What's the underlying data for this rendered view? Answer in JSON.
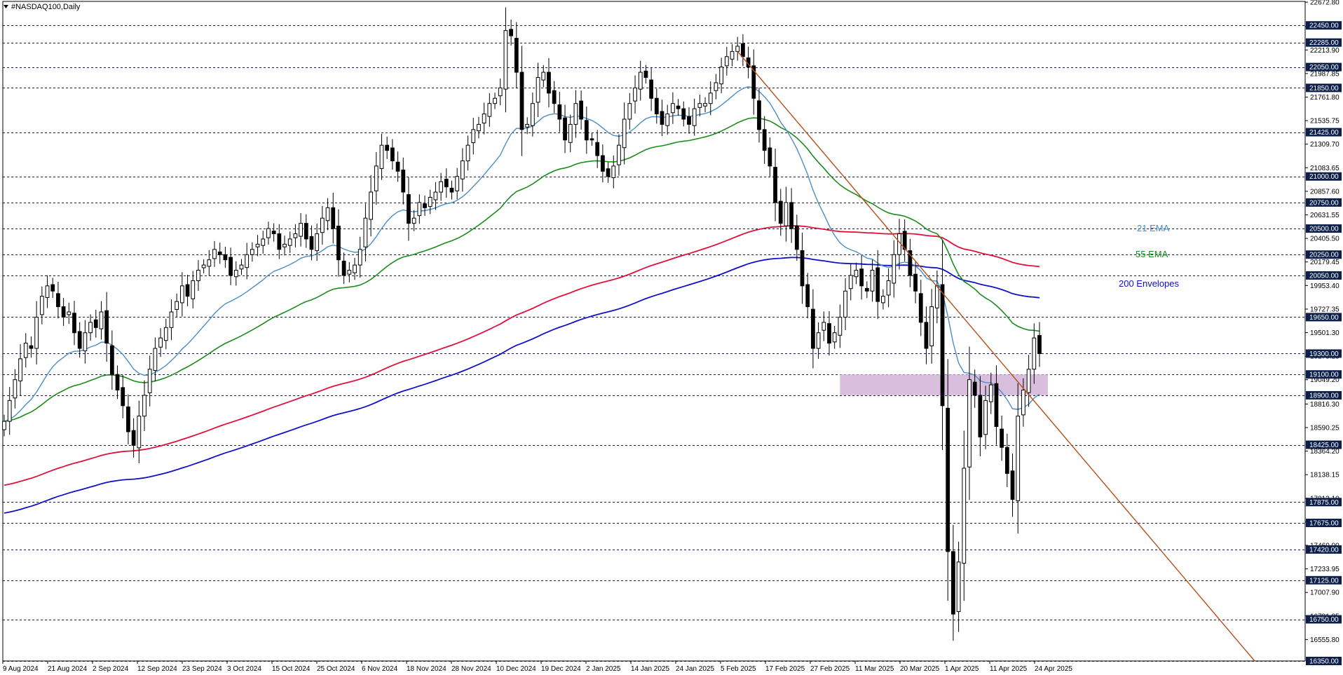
{
  "window": {
    "title": "#NASDAQ100,Daily"
  },
  "colors": {
    "bull_fill": "#ffffff",
    "bear_fill": "#000000",
    "candle_stroke": "#000000",
    "ema21": "#4a8ec6",
    "ema55": "#1a8c1a",
    "env_upper": "#e0103a",
    "env_lower": "#1010c8",
    "trendline": "#b5501a",
    "zone": "#d4b3d8",
    "level_line": "#1a1a4a",
    "level_label_bg": "#0b1f4a"
  },
  "icons": {
    "menu": "triangle-down-icon"
  },
  "chart_data": {
    "type": "candlestick",
    "title": "#NASDAQ100,Daily",
    "ylim": [
      16350,
      22680
    ],
    "y_ticks": [
      "22672.80",
      "22439.05",
      "22213.90",
      "21987.85",
      "21761.80",
      "21535.75",
      "21309.70",
      "21083.65",
      "20857.60",
      "20631.55",
      "20405.50",
      "20179.45",
      "19953.40",
      "19727.35",
      "19501.30",
      "19275.25",
      "19049.20",
      "18816.30",
      "18590.25",
      "18364.20",
      "18138.15",
      "17912.10",
      "17686.05",
      "17460.00",
      "17233.95",
      "17007.90",
      "16781.85",
      "16555.80"
    ],
    "horizontal_levels": [
      22450,
      22285,
      22050,
      21850,
      21425,
      21000,
      20750,
      20500,
      20250,
      20050,
      19650,
      19300,
      19100,
      18900,
      18425,
      17875,
      17675,
      17420,
      17125,
      16750,
      16350
    ],
    "level_labels": [
      "22450.00",
      "22285.00",
      "22050.00",
      "21850.00",
      "21425.00",
      "21000.00",
      "20750.00",
      "20500.00",
      "20250.00",
      "20050.00",
      "19650.00",
      "19300.00",
      "19100.00",
      "18900.00",
      "18425.00",
      "17875.00",
      "17675.00",
      "17420.00",
      "17125.00",
      "16750.00",
      "16350.00"
    ],
    "x_labels": [
      "9 Aug 2024",
      "21 Aug 2024",
      "2 Sep 2024",
      "12 Sep 2024",
      "23 Sep 2024",
      "3 Oct 2024",
      "15 Oct 2024",
      "25 Oct 2024",
      "6 Nov 2024",
      "18 Nov 2024",
      "28 Nov 2024",
      "10 Dec 2024",
      "19 Dec 2024",
      "2 Jan 2025",
      "14 Jan 2025",
      "24 Jan 2025",
      "5 Feb 2025",
      "17 Feb 2025",
      "27 Feb 2025",
      "11 Mar 2025",
      "20 Mar 2025",
      "1 Apr 2025",
      "11 Apr 2025",
      "24 Apr 2025"
    ],
    "candle_closes": [
      18650,
      18850,
      19050,
      19250,
      19400,
      19350,
      19650,
      19850,
      19950,
      19900,
      19750,
      19650,
      19700,
      19500,
      19350,
      19500,
      19600,
      19550,
      19700,
      19400,
      19100,
      18950,
      18800,
      18550,
      18420,
      18700,
      18900,
      19150,
      19350,
      19450,
      19550,
      19700,
      19800,
      19950,
      19850,
      20000,
      20100,
      20150,
      20200,
      20300,
      20250,
      20200,
      20050,
      20100,
      20150,
      20250,
      20300,
      20350,
      20400,
      20500,
      20450,
      20300,
      20350,
      20400,
      20450,
      20550,
      20400,
      20300,
      20450,
      20600,
      20700,
      20500,
      20200,
      20050,
      20100,
      20150,
      20300,
      20600,
      20850,
      21100,
      21300,
      21250,
      21150,
      21050,
      20850,
      20550,
      20600,
      20750,
      20700,
      20800,
      20850,
      20950,
      20900,
      20850,
      21000,
      21150,
      21300,
      21450,
      21500,
      21600,
      21700,
      21750,
      21850,
      22400,
      22350,
      22000,
      21450,
      21500,
      21700,
      21950,
      22000,
      21800,
      21700,
      21550,
      21350,
      21500,
      21700,
      21550,
      21350,
      21350,
      21200,
      21050,
      21000,
      21100,
      21300,
      21550,
      21700,
      21850,
      22000,
      21950,
      21750,
      21600,
      21500,
      21600,
      21700,
      21650,
      21550,
      21500,
      21650,
      21700,
      21700,
      21800,
      21900,
      22050,
      22150,
      22200,
      22250,
      22150,
      22050,
      21750,
      21450,
      21250,
      21100,
      20750,
      20550,
      20750,
      20500,
      20300,
      19950,
      19750,
      19350,
      19500,
      19600,
      19400,
      19500,
      19650,
      19900,
      20050,
      20100,
      19950,
      19900,
      20100,
      19800,
      19850,
      20000,
      20250,
      20450,
      20300,
      20050,
      19900,
      19600,
      19350,
      19750,
      19950,
      18800,
      17400,
      16800,
      17300,
      18200,
      19050,
      18900,
      18500,
      18850,
      19000,
      18600,
      18400,
      18150,
      17900,
      18700,
      18950,
      19150,
      19450,
      19300
    ],
    "ema21_label": "21 EMA",
    "ema55_label": "55 EMA",
    "envelope_label": "200 Envelopes",
    "support_zone": [
      18900,
      19100
    ],
    "trendline": {
      "from": [
        "17 Feb 2025",
        22200
      ],
      "to": [
        "end",
        16350
      ]
    }
  }
}
